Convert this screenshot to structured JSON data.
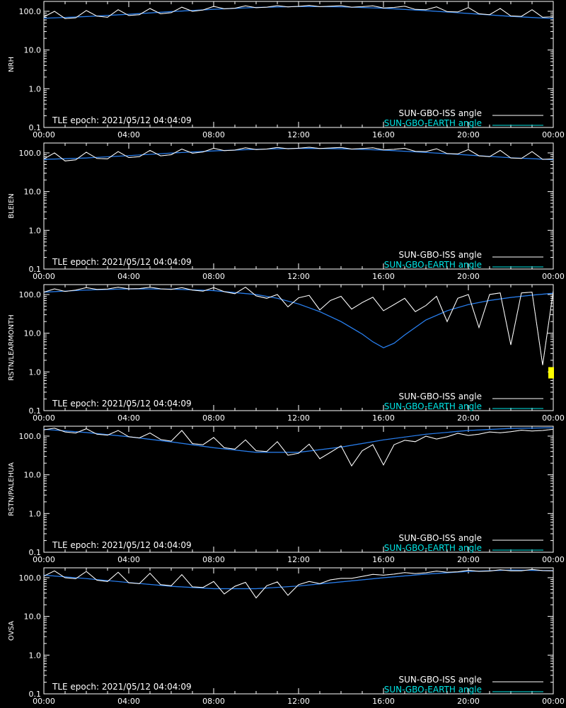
{
  "x_ticks": [
    "00:00",
    "04:00",
    "08:00",
    "12:00",
    "16:00",
    "20:00",
    "00:00"
  ],
  "y_ticks": [
    "100.0",
    "10.0",
    "1.0",
    "0.1"
  ],
  "epoch_label": "TLE epoch: 2021/05/12 04:04:09",
  "legend": [
    {
      "label": "SUN-GBO-ISS angle",
      "color": "#ffffff"
    },
    {
      "label": "SUN-GBO-EARTH angle",
      "color": "#00e5e5"
    }
  ],
  "colors": {
    "background": "#000000",
    "axes": "#ffffff",
    "iss_visible": "#ffffff",
    "iss_hidden": "#6e6e6e",
    "earth_visible": "#2fd3d3",
    "earth_hidden": "#1f1fff",
    "marker": "#ffff00"
  },
  "chart_data": [
    {
      "type": "line",
      "station": "NRH",
      "xlabel": "",
      "ylabel": "NRH",
      "x_unit": "hours UT",
      "y_scale": "log",
      "xlim": [
        0,
        24
      ],
      "ylim": [
        0.1,
        180
      ],
      "grid": false,
      "legend_position": "bottom-right",
      "series": [
        {
          "name": "SUN-GBO-ISS angle",
          "x": [
            0,
            0.5,
            1,
            1.5,
            2,
            2.5,
            3,
            3.5,
            4,
            4.5,
            5,
            5.5,
            6,
            6.5,
            7,
            7.5,
            8,
            8.5,
            9,
            9.5,
            10,
            10.5,
            11,
            11.5,
            12,
            12.5,
            13,
            13.5,
            14,
            14.5,
            15,
            15.5,
            16,
            16.5,
            17,
            17.5,
            18,
            18.5,
            19,
            19.5,
            20,
            20.5,
            21,
            21.5,
            22,
            22.5,
            23,
            23.5,
            24
          ],
          "y": [
            72,
            100,
            65,
            68,
            105,
            75,
            70,
            110,
            78,
            82,
            118,
            86,
            92,
            128,
            100,
            108,
            134,
            116,
            120,
            138,
            124,
            128,
            140,
            130,
            134,
            142,
            132,
            136,
            140,
            128,
            132,
            138,
            122,
            126,
            135,
            112,
            110,
            130,
            98,
            96,
            125,
            86,
            82,
            118,
            76,
            74,
            110,
            70,
            72
          ]
        },
        {
          "name": "SUN-GBO-EARTH angle",
          "x": [
            0,
            2,
            4,
            6,
            8,
            10,
            12,
            14,
            16,
            18,
            20,
            22,
            24
          ],
          "y": [
            66,
            73,
            84,
            98,
            113,
            126,
            133,
            130,
            120,
            104,
            88,
            74,
            65
          ]
        }
      ]
    },
    {
      "type": "line",
      "station": "BLEIEN",
      "xlabel": "",
      "ylabel": "BLEIEN",
      "x_unit": "hours UT",
      "y_scale": "log",
      "xlim": [
        0,
        24
      ],
      "ylim": [
        0.1,
        180
      ],
      "grid": false,
      "legend_position": "bottom-right",
      "series": [
        {
          "name": "SUN-GBO-ISS angle",
          "x": [
            0,
            0.5,
            1,
            1.5,
            2,
            2.5,
            3,
            3.5,
            4,
            4.5,
            5,
            5.5,
            6,
            6.5,
            7,
            7.5,
            8,
            8.5,
            9,
            9.5,
            10,
            10.5,
            11,
            11.5,
            12,
            12.5,
            13,
            13.5,
            14,
            14.5,
            15,
            15.5,
            16,
            16.5,
            17,
            17.5,
            18,
            18.5,
            19,
            19.5,
            20,
            20.5,
            21,
            21.5,
            22,
            22.5,
            23,
            23.5,
            24
          ],
          "y": [
            70,
            100,
            62,
            66,
            104,
            72,
            70,
            108,
            76,
            80,
            116,
            84,
            90,
            126,
            98,
            106,
            132,
            114,
            118,
            136,
            122,
            126,
            138,
            128,
            132,
            140,
            130,
            134,
            138,
            126,
            130,
            136,
            120,
            124,
            132,
            110,
            108,
            128,
            96,
            94,
            122,
            84,
            80,
            116,
            74,
            72,
            108,
            68,
            70
          ]
        },
        {
          "name": "SUN-GBO-EARTH angle",
          "x": [
            0,
            2,
            4,
            6,
            8,
            10,
            12,
            14,
            16,
            18,
            20,
            22,
            24
          ],
          "y": [
            68,
            74,
            85,
            99,
            113,
            124,
            131,
            128,
            118,
            103,
            88,
            75,
            67
          ]
        }
      ]
    },
    {
      "type": "line",
      "station": "RSTN/LEARMONTH",
      "xlabel": "",
      "ylabel": "RSTN/LEARMONTH",
      "x_unit": "hours UT",
      "y_scale": "log",
      "xlim": [
        0,
        24
      ],
      "ylim": [
        0.1,
        180
      ],
      "grid": false,
      "legend_position": "bottom-right",
      "marker": {
        "x": 23.9,
        "y": 0.95,
        "label": ""
      },
      "series": [
        {
          "name": "SUN-GBO-ISS angle",
          "x": [
            0,
            0.5,
            1,
            1.5,
            2,
            2.5,
            3,
            3.5,
            4,
            4.5,
            5,
            5.5,
            6,
            6.5,
            7,
            7.5,
            8,
            8.5,
            9,
            9.5,
            10,
            10.5,
            11,
            11.5,
            12,
            12.5,
            13,
            13.5,
            14,
            14.5,
            15,
            15.5,
            16,
            16.5,
            17,
            17.5,
            18,
            18.5,
            19,
            19.5,
            20,
            20.5,
            21,
            21.5,
            22,
            22.5,
            23,
            23.5,
            24
          ],
          "y": [
            115,
            140,
            120,
            130,
            150,
            135,
            138,
            155,
            140,
            142,
            155,
            140,
            136,
            150,
            130,
            122,
            150,
            118,
            105,
            155,
            92,
            80,
            100,
            48,
            82,
            95,
            40,
            70,
            90,
            42,
            62,
            85,
            38,
            55,
            80,
            36,
            52,
            90,
            20,
            80,
            100,
            14,
            100,
            110,
            5,
            110,
            115,
            1.5,
            125
          ]
        },
        {
          "name": "SUN-GBO-EARTH angle",
          "x": [
            0,
            2,
            4,
            6,
            8,
            10,
            11,
            12,
            13,
            14,
            15,
            15.5,
            16,
            16.5,
            17,
            18,
            19,
            20,
            21,
            22,
            23,
            24
          ],
          "y": [
            115,
            130,
            140,
            138,
            126,
            100,
            80,
            57,
            36,
            20,
            9.5,
            6,
            4.2,
            5.5,
            9,
            22,
            38,
            55,
            70,
            84,
            96,
            108
          ]
        }
      ]
    },
    {
      "type": "line",
      "station": "RSTN/PALEHUA",
      "xlabel": "",
      "ylabel": "RSTN/PALEHUA",
      "x_unit": "hours UT",
      "y_scale": "log",
      "xlim": [
        0,
        24
      ],
      "ylim": [
        0.1,
        180
      ],
      "grid": false,
      "legend_position": "bottom-right",
      "series": [
        {
          "name": "SUN-GBO-ISS angle",
          "x": [
            0,
            0.5,
            1,
            1.5,
            2,
            2.5,
            3,
            3.5,
            4,
            4.5,
            5,
            5.5,
            6,
            6.5,
            7,
            7.5,
            8,
            8.5,
            9,
            9.5,
            10,
            10.5,
            11,
            11.5,
            12,
            12.5,
            13,
            13.5,
            14,
            14.5,
            15,
            15.5,
            16,
            16.5,
            17,
            17.5,
            18,
            18.5,
            19,
            19.5,
            20,
            20.5,
            21,
            21.5,
            22,
            22.5,
            23,
            23.5,
            24
          ],
          "y": [
            145,
            160,
            128,
            120,
            155,
            112,
            106,
            140,
            96,
            90,
            120,
            82,
            74,
            140,
            64,
            60,
            92,
            50,
            46,
            80,
            42,
            40,
            72,
            32,
            36,
            62,
            26,
            38,
            56,
            17,
            42,
            60,
            18,
            60,
            78,
            72,
            100,
            84,
            96,
            118,
            104,
            112,
            128,
            122,
            130,
            142,
            136,
            140,
            150
          ]
        },
        {
          "name": "SUN-GBO-EARTH angle",
          "x": [
            0,
            2,
            4,
            6,
            8,
            10,
            12,
            14,
            16,
            18,
            20,
            22,
            24
          ],
          "y": [
            150,
            124,
            96,
            71,
            50,
            38,
            38,
            52,
            80,
            112,
            140,
            158,
            164
          ]
        }
      ]
    },
    {
      "type": "line",
      "station": "OVSA",
      "xlabel": "",
      "ylabel": "OVSA",
      "x_unit": "hours UT",
      "y_scale": "log",
      "xlim": [
        0,
        24
      ],
      "ylim": [
        0.1,
        180
      ],
      "grid": false,
      "legend_position": "bottom-right",
      "series": [
        {
          "name": "SUN-GBO-ISS angle",
          "x": [
            0,
            0.5,
            1,
            1.5,
            2,
            2.5,
            3,
            3.5,
            4,
            4.5,
            5,
            5.5,
            6,
            6.5,
            7,
            7.5,
            8,
            8.5,
            9,
            9.5,
            10,
            10.5,
            11,
            11.5,
            12,
            12.5,
            13,
            13.5,
            14,
            14.5,
            15,
            15.5,
            16,
            16.5,
            17,
            17.5,
            18,
            18.5,
            19,
            19.5,
            20,
            20.5,
            21,
            21.5,
            22,
            22.5,
            23,
            23.5,
            24
          ],
          "y": [
            110,
            150,
            100,
            94,
            145,
            86,
            80,
            138,
            74,
            70,
            130,
            66,
            62,
            120,
            58,
            56,
            80,
            38,
            60,
            76,
            30,
            62,
            78,
            35,
            66,
            80,
            70,
            88,
            96,
            96,
            108,
            122,
            116,
            124,
            136,
            128,
            134,
            148,
            138,
            142,
            156,
            146,
            148,
            160,
            150,
            150,
            164,
            152,
            150
          ]
        },
        {
          "name": "SUN-GBO-EARTH angle",
          "x": [
            0,
            2,
            4,
            6,
            8,
            10,
            12,
            14,
            16,
            18,
            20,
            22,
            24
          ],
          "y": [
            116,
            95,
            75,
            60,
            52,
            52,
            61,
            78,
            100,
            124,
            145,
            158,
            152
          ]
        }
      ]
    }
  ]
}
